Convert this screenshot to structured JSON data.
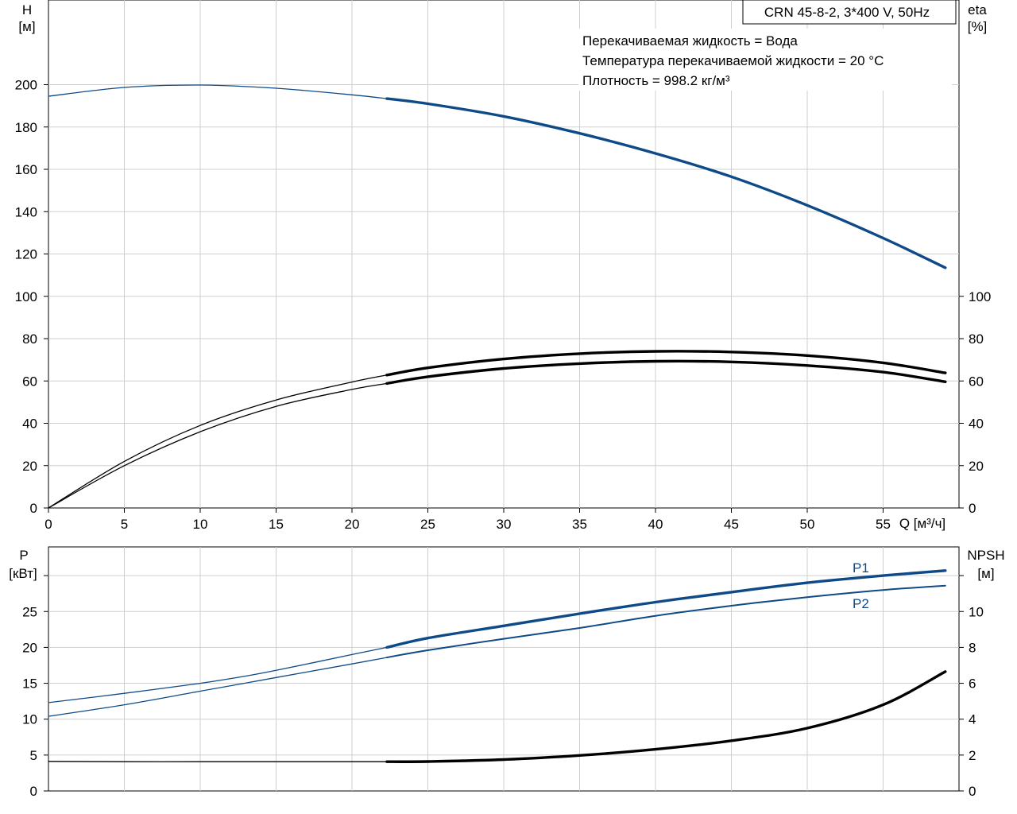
{
  "colors": {
    "blue": "#0e4a87",
    "black": "#000000",
    "grid": "#cfcfcf"
  },
  "chart_data": [
    {
      "type": "line",
      "title": "CRN 45-8-2, 3*400 V, 50Hz",
      "notes": [
        "Перекачиваемая жидкость = Вода",
        "Температура перекачиваемой жидкости = 20 °C",
        "Плотность = 998.2 кг/м³"
      ],
      "xlabel": "Q [м³/ч]",
      "ylabel": [
        "H",
        "[м]"
      ],
      "y2label": [
        "eta",
        "[%]"
      ],
      "xlim": [
        0,
        60
      ],
      "ylim": [
        0,
        240
      ],
      "y2lim": [
        0,
        240
      ],
      "xticks": [
        0,
        5,
        10,
        15,
        20,
        25,
        30,
        35,
        40,
        45,
        50,
        55
      ],
      "yticks": [
        0,
        20,
        40,
        60,
        80,
        100,
        120,
        140,
        160,
        180,
        200
      ],
      "y2ticks": [
        0,
        20,
        40,
        60,
        80,
        100
      ],
      "grid": true,
      "operating_range_start": 22.3,
      "series": [
        {
          "color": "#0e4a87",
          "axis": "left",
          "x": [
            0,
            5,
            10,
            15,
            20,
            22.3,
            25,
            30,
            35,
            40,
            45,
            50,
            55,
            59.1
          ],
          "y": [
            194.5,
            198.7,
            199.8,
            198.3,
            195.2,
            193.4,
            191,
            185,
            177,
            167.5,
            156.5,
            143,
            127.5,
            113.5
          ]
        },
        {
          "color": "#000000",
          "axis": "right",
          "x": [
            0,
            5,
            10,
            15,
            20,
            22.3,
            25,
            30,
            35,
            40,
            45,
            50,
            55,
            59.1
          ],
          "y": [
            0,
            22,
            39,
            51,
            59.5,
            62.8,
            66.2,
            70.4,
            72.9,
            74,
            73.7,
            72,
            68.6,
            63.8
          ]
        },
        {
          "color": "#000000",
          "axis": "right",
          "x": [
            0,
            5,
            10,
            15,
            20,
            22.3,
            25,
            30,
            35,
            40,
            45,
            50,
            55,
            59.1
          ],
          "y": [
            0,
            20,
            36,
            48,
            56,
            58.8,
            62,
            65.9,
            68.2,
            69.3,
            69,
            67.3,
            64.2,
            59.6
          ]
        }
      ]
    },
    {
      "type": "line",
      "xlabel": "",
      "ylabel": [
        "P",
        "[кВт]"
      ],
      "y2label": [
        "NPSH",
        "[м]"
      ],
      "xlim": [
        0,
        60
      ],
      "ylim": [
        0,
        34
      ],
      "y2lim": [
        0,
        13.6
      ],
      "yticks": [
        0,
        5,
        10,
        15,
        20,
        25
      ],
      "y2ticks": [
        0,
        2,
        4,
        6,
        8,
        10
      ],
      "grid": true,
      "operating_range_start": 22.3,
      "series": [
        {
          "name": "P1",
          "color": "#0e4a87",
          "axis": "left",
          "x": [
            0,
            5,
            10,
            13,
            15,
            20,
            22.3,
            25,
            30,
            35,
            40,
            45,
            50,
            55,
            59.1
          ],
          "y": [
            12.3,
            13.6,
            15,
            16,
            16.8,
            19,
            20,
            21.3,
            23,
            24.7,
            26.3,
            27.7,
            29,
            30,
            30.7
          ]
        },
        {
          "name": "P2",
          "color": "#0e4a87",
          "axis": "left",
          "x": [
            0,
            5,
            10,
            15,
            20,
            22.3,
            25,
            30,
            35,
            40,
            45,
            50,
            55,
            59.1
          ],
          "y": [
            10.4,
            12,
            13.9,
            15.8,
            17.7,
            18.6,
            19.6,
            21.2,
            22.7,
            24.4,
            25.8,
            27,
            28,
            28.6
          ]
        },
        {
          "color": "#000000",
          "axis": "right",
          "x": [
            0,
            5,
            10,
            15,
            20,
            22.3,
            25,
            30,
            35,
            40,
            45,
            50,
            55,
            59.1
          ],
          "y": [
            1.65,
            1.63,
            1.63,
            1.63,
            1.63,
            1.63,
            1.64,
            1.75,
            1.98,
            2.32,
            2.8,
            3.5,
            4.8,
            6.65
          ]
        }
      ]
    }
  ]
}
